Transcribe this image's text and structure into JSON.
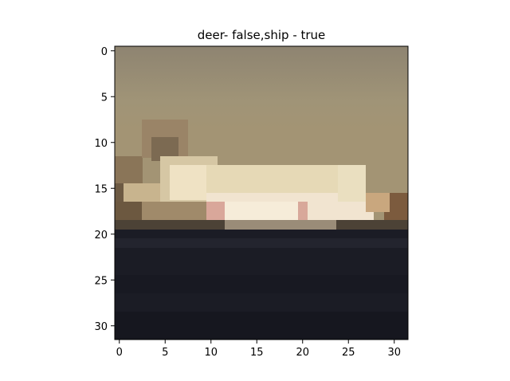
{
  "chart_data": {
    "type": "heatmap",
    "title": "deer- false,ship - true",
    "xlabel": "",
    "ylabel": "",
    "xlim": [
      -0.5,
      31.5
    ],
    "ylim": [
      31.5,
      -0.5
    ],
    "x_ticks": [
      0,
      5,
      10,
      15,
      20,
      25,
      30
    ],
    "y_ticks": [
      0,
      5,
      10,
      15,
      20,
      25,
      30
    ],
    "grid": false,
    "legend": "none",
    "image_resolution": [
      32,
      32
    ]
  }
}
